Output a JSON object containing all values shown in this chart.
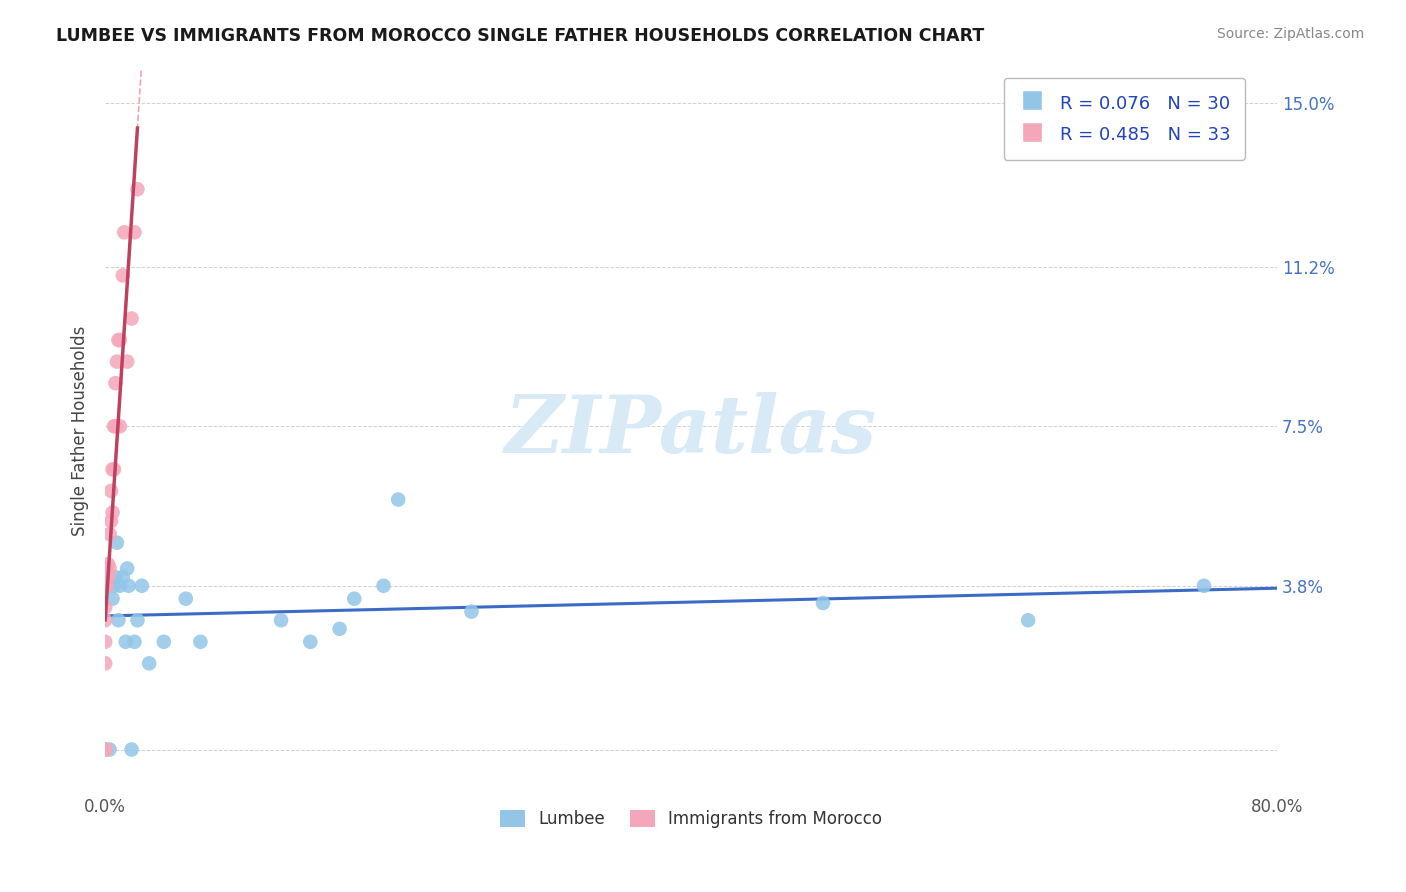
{
  "title": "LUMBEE VS IMMIGRANTS FROM MOROCCO SINGLE FATHER HOUSEHOLDS CORRELATION CHART",
  "source": "Source: ZipAtlas.com",
  "ylabel": "Single Father Households",
  "xlim": [
    0.0,
    0.8
  ],
  "ylim": [
    -0.01,
    0.158
  ],
  "lumbee_R": 0.076,
  "lumbee_N": 30,
  "morocco_R": 0.485,
  "morocco_N": 33,
  "lumbee_color": "#92C5E8",
  "morocco_color": "#F4A7B9",
  "lumbee_line_color": "#3B6BC4",
  "morocco_line_color": "#C04060",
  "morocco_dash_color": "#E08090",
  "watermark_color": "#D8EAF5",
  "background_color": "#FFFFFF",
  "ytick_positions": [
    0.0,
    0.038,
    0.075,
    0.112,
    0.15
  ],
  "ytick_labels": [
    "",
    "3.8%",
    "7.5%",
    "11.2%",
    "15.0%"
  ],
  "lumbee_x": [
    0.001,
    0.003,
    0.005,
    0.006,
    0.007,
    0.008,
    0.009,
    0.01,
    0.012,
    0.014,
    0.015,
    0.016,
    0.018,
    0.02,
    0.022,
    0.025,
    0.03,
    0.04,
    0.055,
    0.065,
    0.12,
    0.14,
    0.16,
    0.17,
    0.19,
    0.2,
    0.25,
    0.49,
    0.63,
    0.75
  ],
  "lumbee_y": [
    0.038,
    0.0,
    0.035,
    0.038,
    0.04,
    0.048,
    0.03,
    0.038,
    0.04,
    0.025,
    0.042,
    0.038,
    0.0,
    0.025,
    0.03,
    0.038,
    0.02,
    0.025,
    0.035,
    0.025,
    0.03,
    0.025,
    0.028,
    0.035,
    0.038,
    0.058,
    0.032,
    0.034,
    0.03,
    0.038
  ],
  "morocco_x": [
    0.0,
    0.0,
    0.0,
    0.0,
    0.0,
    0.0,
    0.0,
    0.0,
    0.001,
    0.001,
    0.001,
    0.002,
    0.002,
    0.003,
    0.003,
    0.004,
    0.004,
    0.005,
    0.005,
    0.006,
    0.006,
    0.007,
    0.007,
    0.008,
    0.009,
    0.01,
    0.01,
    0.012,
    0.013,
    0.015,
    0.018,
    0.02,
    0.022
  ],
  "morocco_y": [
    0.0,
    0.0,
    0.0,
    0.02,
    0.025,
    0.03,
    0.033,
    0.038,
    0.038,
    0.04,
    0.042,
    0.04,
    0.043,
    0.042,
    0.05,
    0.053,
    0.06,
    0.055,
    0.065,
    0.065,
    0.075,
    0.075,
    0.085,
    0.09,
    0.095,
    0.075,
    0.095,
    0.11,
    0.12,
    0.09,
    0.1,
    0.12,
    0.13
  ]
}
